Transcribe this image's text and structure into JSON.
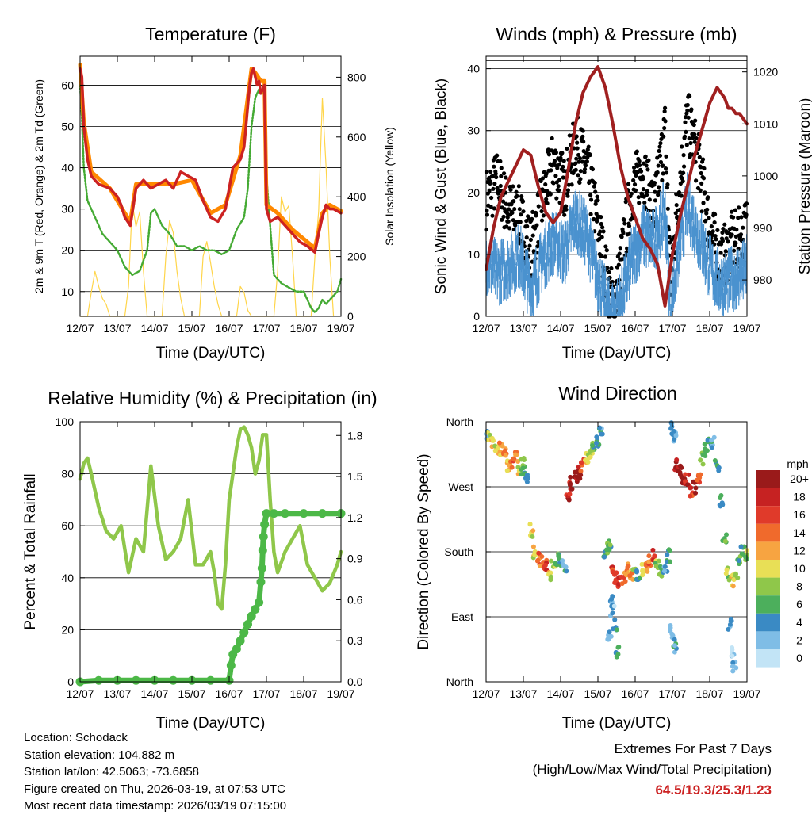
{
  "figure": {
    "time_ticks": [
      "12/07",
      "13/07",
      "14/07",
      "15/07",
      "16/07",
      "17/07",
      "18/07",
      "19/07"
    ],
    "xlabel": "Time (Day/UTC)"
  },
  "chart_data": [
    {
      "id": "temperature",
      "type": "line",
      "title": "Temperature (F)",
      "ylabel": "2m & 9m T (Red, Orange) & 2m Td (Green)",
      "y2label": "Solar Insolation (Yellow)",
      "xlabel": "Time (Day/UTC)",
      "ylim": [
        4,
        67
      ],
      "y2lim": [
        0,
        870
      ],
      "yticks": [
        10,
        20,
        30,
        40,
        50,
        60
      ],
      "y2ticks": [
        0,
        200,
        400,
        600,
        800
      ],
      "series": [
        {
          "name": "2m T",
          "color": "#cc2222",
          "x": [
            0,
            0.05,
            0.1,
            0.2,
            0.3,
            0.5,
            0.8,
            1.0,
            1.1,
            1.2,
            1.35,
            1.5,
            1.7,
            1.9,
            2.1,
            2.3,
            2.5,
            2.7,
            2.9,
            3.1,
            3.3,
            3.5,
            3.7,
            3.9,
            4.1,
            4.3,
            4.4,
            4.5,
            4.55,
            4.6,
            4.65,
            4.7,
            4.75,
            4.8,
            4.85,
            4.9,
            4.95,
            5.0,
            5.1,
            5.3,
            5.5,
            5.7,
            5.9,
            6.1,
            6.3,
            6.4,
            6.5,
            6.6,
            6.7,
            6.8,
            6.9,
            7.0
          ],
          "values": [
            64,
            62,
            50,
            42,
            38,
            36,
            35,
            33,
            31,
            28,
            26,
            35,
            37,
            35,
            36,
            37,
            35,
            39,
            38,
            37,
            32,
            28,
            27,
            30,
            40,
            42,
            45,
            55,
            60,
            63,
            64,
            62,
            60,
            61,
            58,
            59,
            60,
            30,
            27,
            28,
            26,
            24,
            22,
            21,
            19.5,
            24,
            28,
            31,
            30,
            30,
            29.5,
            29
          ]
        },
        {
          "name": "9m T",
          "color": "#ff8800",
          "x": [
            0,
            0.1,
            0.3,
            0.8,
            1.2,
            1.35,
            1.5,
            2.0,
            2.5,
            3.0,
            3.5,
            3.9,
            4.3,
            4.6,
            4.7,
            4.85,
            4.95,
            5.0,
            5.3,
            5.7,
            6.1,
            6.3,
            6.5,
            6.7,
            7.0
          ],
          "values": [
            65,
            51,
            39,
            35,
            29,
            27,
            36,
            36,
            36,
            37,
            29,
            31,
            43,
            64,
            63,
            61,
            61,
            31,
            29,
            25,
            22,
            20.5,
            29,
            31,
            29.5
          ]
        },
        {
          "name": "2m Td",
          "color": "#44aa33",
          "x": [
            0,
            0.05,
            0.1,
            0.2,
            0.4,
            0.6,
            0.8,
            1.0,
            1.2,
            1.4,
            1.6,
            1.8,
            1.9,
            2.0,
            2.2,
            2.4,
            2.6,
            2.8,
            3.0,
            3.2,
            3.4,
            3.6,
            3.8,
            4.0,
            4.2,
            4.4,
            4.5,
            4.6,
            4.7,
            4.8,
            4.9,
            4.95,
            5.0,
            5.2,
            5.4,
            5.6,
            5.8,
            6.0,
            6.1,
            6.2,
            6.3,
            6.4,
            6.5,
            6.6,
            6.7,
            6.8,
            6.9,
            7.0
          ],
          "values": [
            60,
            52,
            40,
            32,
            28,
            24,
            22,
            20,
            16,
            14,
            15,
            20,
            29,
            30,
            26,
            24,
            21,
            21,
            20,
            21,
            20,
            20,
            19,
            20,
            25,
            28,
            35,
            50,
            57,
            59,
            58,
            60,
            38,
            14,
            12,
            11,
            10,
            10,
            8,
            6,
            5,
            6,
            8,
            7,
            8,
            9,
            10,
            13
          ]
        },
        {
          "name": "Solar Insolation",
          "color": "#ffd54a",
          "axis": "y2",
          "x": [
            0,
            0.2,
            0.3,
            0.4,
            0.5,
            0.6,
            0.7,
            0.8,
            1.2,
            1.3,
            1.4,
            1.5,
            1.6,
            1.7,
            1.8,
            2.2,
            2.3,
            2.4,
            2.5,
            2.6,
            2.7,
            2.8,
            3.2,
            3.3,
            3.4,
            3.5,
            3.6,
            3.7,
            3.8,
            4.2,
            4.3,
            4.4,
            4.5,
            4.6,
            4.7,
            4.8,
            5.2,
            5.3,
            5.4,
            5.5,
            5.6,
            5.7,
            5.8,
            6.2,
            6.3,
            6.4,
            6.5,
            6.6,
            6.7,
            6.8
          ],
          "values": [
            0,
            0,
            80,
            150,
            100,
            60,
            40,
            0,
            0,
            100,
            380,
            300,
            350,
            150,
            0,
            0,
            200,
            320,
            280,
            150,
            60,
            0,
            0,
            200,
            250,
            180,
            100,
            40,
            0,
            0,
            100,
            80,
            20,
            0,
            0,
            0,
            0,
            150,
            400,
            350,
            370,
            200,
            0,
            0,
            200,
            350,
            730,
            500,
            200,
            0
          ]
        }
      ]
    },
    {
      "id": "winds",
      "type": "scatter",
      "title": "Winds (mph) & Pressure (mb)",
      "ylabel": "Sonic Wind & Gust (Blue, Black)",
      "y2label": "Station Pressure (Maroon)",
      "xlabel": "Time (Day/UTC)",
      "ylim": [
        0,
        42
      ],
      "y2lim": [
        973,
        1023
      ],
      "yticks": [
        0,
        10,
        20,
        30,
        40
      ],
      "y2ticks": [
        980,
        990,
        1000,
        1010,
        1020
      ],
      "series": [
        {
          "name": "Sonic Wind",
          "color": "#4b92cf",
          "x": [
            0,
            0.3,
            0.6,
            0.9,
            1.2,
            1.5,
            1.8,
            2.1,
            2.4,
            2.7,
            3.0,
            3.3,
            3.45,
            3.6,
            3.9,
            4.2,
            4.5,
            4.8,
            4.95,
            5.1,
            5.4,
            5.7,
            6.0,
            6.3,
            6.6,
            6.9,
            7.0
          ],
          "values": [
            9,
            7,
            8,
            10,
            4,
            9,
            12,
            10,
            16,
            13,
            6,
            1,
            0.5,
            2,
            9,
            13,
            12,
            17,
            1,
            8,
            18,
            13,
            8,
            5,
            6,
            7,
            8
          ]
        },
        {
          "name": "Gust",
          "color": "#000000",
          "x": [
            0,
            0.3,
            0.6,
            0.9,
            1.2,
            1.5,
            1.8,
            2.1,
            2.4,
            2.7,
            3.0,
            3.3,
            3.45,
            3.6,
            3.9,
            4.2,
            4.5,
            4.8,
            4.95,
            5.1,
            5.4,
            5.7,
            6.0,
            6.3,
            6.6,
            6.9,
            7.0
          ],
          "values": [
            19,
            22,
            17,
            16,
            11,
            18,
            25,
            21,
            28,
            24,
            15,
            4,
            2,
            8,
            20,
            24,
            17,
            30,
            6,
            16,
            32,
            25,
            14,
            9,
            12,
            13,
            15
          ]
        },
        {
          "name": "Station Pressure",
          "color": "#a01f1f",
          "axis": "y2",
          "x": [
            0,
            0.2,
            0.4,
            0.6,
            0.8,
            1.0,
            1.2,
            1.4,
            1.6,
            1.8,
            2.0,
            2.2,
            2.4,
            2.6,
            2.8,
            3.0,
            3.2,
            3.4,
            3.6,
            3.8,
            4.0,
            4.2,
            4.4,
            4.6,
            4.8,
            4.9,
            5.0,
            5.2,
            5.4,
            5.6,
            5.8,
            6.0,
            6.2,
            6.4,
            6.5,
            6.6,
            6.7,
            6.8,
            6.9,
            7.0
          ],
          "values": [
            982,
            990,
            996,
            999,
            1002,
            1005,
            1004,
            998,
            993,
            991,
            993,
            1001,
            1010,
            1016,
            1019,
            1021,
            1017,
            1010,
            1002,
            996,
            992,
            988,
            986,
            983,
            975,
            980,
            985,
            992,
            998,
            1004,
            1009,
            1014,
            1017,
            1015,
            1013,
            1013,
            1012,
            1012,
            1011,
            1010
          ]
        }
      ]
    },
    {
      "id": "humidity",
      "type": "line",
      "title": "Relative Humidity (%) & Precipitation (in)",
      "ylabel": "Percent & Total Rainfall",
      "xlabel": "Time (Day/UTC)",
      "ylim": [
        0,
        100
      ],
      "y2lim": [
        0,
        1.9
      ],
      "yticks": [
        0,
        20,
        40,
        60,
        80,
        100
      ],
      "y2ticks": [
        "0.0",
        "0.3",
        "0.6",
        "0.9",
        "1.2",
        "1.5",
        "1.8"
      ],
      "series": [
        {
          "name": "Relative Humidity",
          "color": "#8fc74a",
          "x": [
            0,
            0.1,
            0.2,
            0.3,
            0.5,
            0.7,
            0.9,
            1.1,
            1.3,
            1.5,
            1.7,
            1.9,
            2.1,
            2.3,
            2.5,
            2.7,
            2.9,
            3.1,
            3.3,
            3.5,
            3.6,
            3.7,
            3.8,
            3.9,
            4.0,
            4.1,
            4.2,
            4.3,
            4.4,
            4.5,
            4.6,
            4.7,
            4.8,
            4.9,
            5.0,
            5.1,
            5.2,
            5.3,
            5.5,
            5.7,
            5.9,
            6.1,
            6.3,
            6.5,
            6.7,
            6.9,
            7.0
          ],
          "values": [
            78,
            84,
            86,
            80,
            67,
            58,
            55,
            60,
            42,
            55,
            50,
            83,
            60,
            47,
            50,
            55,
            70,
            45,
            45,
            50,
            42,
            30,
            28,
            45,
            70,
            80,
            90,
            97,
            98,
            95,
            90,
            80,
            85,
            95,
            95,
            70,
            50,
            42,
            50,
            55,
            60,
            45,
            40,
            35,
            38,
            45,
            50
          ]
        },
        {
          "name": "Total Precipitation",
          "color": "#4cb847",
          "axis": "y2",
          "x": [
            0,
            0.5,
            1.0,
            1.5,
            2.0,
            2.5,
            3.0,
            3.5,
            4.0,
            4.05,
            4.1,
            4.2,
            4.3,
            4.4,
            4.5,
            4.6,
            4.7,
            4.8,
            4.85,
            4.88,
            4.9,
            4.92,
            4.95,
            5.0,
            5.2,
            5.5,
            6.0,
            6.5,
            7.0
          ],
          "values": [
            0,
            0.01,
            0.01,
            0.01,
            0.01,
            0.01,
            0.01,
            0.01,
            0.01,
            0.12,
            0.2,
            0.24,
            0.3,
            0.36,
            0.42,
            0.48,
            0.53,
            0.58,
            0.73,
            0.83,
            0.96,
            1.06,
            1.15,
            1.23,
            1.23,
            1.23,
            1.23,
            1.23,
            1.23
          ]
        }
      ]
    },
    {
      "id": "wind_direction",
      "type": "scatter",
      "title": "Wind Direction",
      "ylabel": "Direction (Colored By Speed)",
      "xlabel": "Time (Day/UTC)",
      "ylim": [
        0,
        360
      ],
      "ytick_labels": [
        "North",
        "East",
        "South",
        "West",
        "North"
      ],
      "ytick_values": [
        0,
        90,
        180,
        270,
        360
      ],
      "colorbar": {
        "title": "mph",
        "labels": [
          "20+",
          "18",
          "16",
          "14",
          "12",
          "10",
          "8",
          "6",
          "4",
          "2",
          "0"
        ],
        "colors": [
          "#9a1a1a",
          "#c62222",
          "#e03a2a",
          "#f06a2c",
          "#f7a441",
          "#e8df56",
          "#8fc74a",
          "#4caf5c",
          "#3a8ac4",
          "#7fbde6",
          "#c2e4f6"
        ]
      },
      "points": {
        "x": [
          0.05,
          0.1,
          0.2,
          0.3,
          0.4,
          0.5,
          0.6,
          0.7,
          0.8,
          0.9,
          1.0,
          1.1,
          1.0,
          1.2,
          1.3,
          1.4,
          1.5,
          1.6,
          1.7,
          1.8,
          1.9,
          2.0,
          2.1,
          2.2,
          2.3,
          2.4,
          2.5,
          2.6,
          2.7,
          2.8,
          2.9,
          3.0,
          3.1,
          3.2,
          3.3,
          3.4,
          3.5,
          3.6,
          3.7,
          3.8,
          3.9,
          4.0,
          4.1,
          4.2,
          4.3,
          4.4,
          4.5,
          4.6,
          4.7,
          4.8,
          4.9,
          5.0,
          5.05,
          5.1,
          5.2,
          5.3,
          5.4,
          5.5,
          5.6,
          5.7,
          5.8,
          5.9,
          6.0,
          6.1,
          6.2,
          6.3,
          6.4,
          6.5,
          6.6,
          6.7,
          6.8,
          6.9,
          7.0,
          3.35,
          3.4,
          3.45,
          3.3,
          3.5,
          5.0,
          5.05,
          6.55,
          6.6,
          6.65
        ],
        "y": [
          345,
          340,
          330,
          320,
          322,
          315,
          300,
          305,
          310,
          295,
          290,
          280,
          305,
          210,
          180,
          170,
          165,
          160,
          150,
          165,
          170,
          170,
          160,
          260,
          275,
          285,
          290,
          300,
          310,
          318,
          325,
          335,
          345,
          180,
          190,
          150,
          145,
          140,
          145,
          155,
          145,
          150,
          145,
          155,
          160,
          170,
          175,
          160,
          155,
          160,
          175,
          350,
          340,
          300,
          290,
          275,
          280,
          265,
          270,
          285,
          310,
          320,
          330,
          330,
          300,
          250,
          200,
          150,
          140,
          145,
          170,
          180,
          175,
          110,
          100,
          80,
          60,
          40,
          70,
          50,
          80,
          40,
          20
        ],
        "speed": [
          3,
          8,
          9,
          10,
          12,
          13,
          11,
          14,
          12,
          10,
          5,
          4,
          8,
          9,
          10,
          14,
          13,
          15,
          10,
          8,
          6,
          5,
          3,
          17,
          18,
          19,
          20,
          14,
          10,
          8,
          6,
          4,
          3,
          5,
          6,
          15,
          16,
          17,
          14,
          13,
          12,
          6,
          5,
          10,
          12,
          14,
          16,
          8,
          6,
          4,
          5,
          3,
          3,
          18,
          20,
          19,
          17,
          16,
          20,
          14,
          8,
          6,
          4,
          3,
          5,
          4,
          6,
          8,
          9,
          8,
          6,
          6,
          7,
          3,
          2,
          4,
          3,
          4,
          2,
          4,
          3,
          1,
          2
        ]
      }
    }
  ],
  "info": {
    "location": "Location: Schodack",
    "elevation": "Station elevation: 104.882 m",
    "latlon": "Station lat/lon: 42.5063; -73.6858",
    "created": "Figure created on Thu, 2026-03-19, at 07:53 UTC",
    "recent": "Most recent data timestamp: 2026/03/19 07:15:00"
  },
  "extremes": {
    "title": "Extremes For Past 7 Days",
    "subtitle": "(High/Low/Max Wind/Total Precipitation)",
    "values": "64.5/19.3/25.3/1.23"
  }
}
